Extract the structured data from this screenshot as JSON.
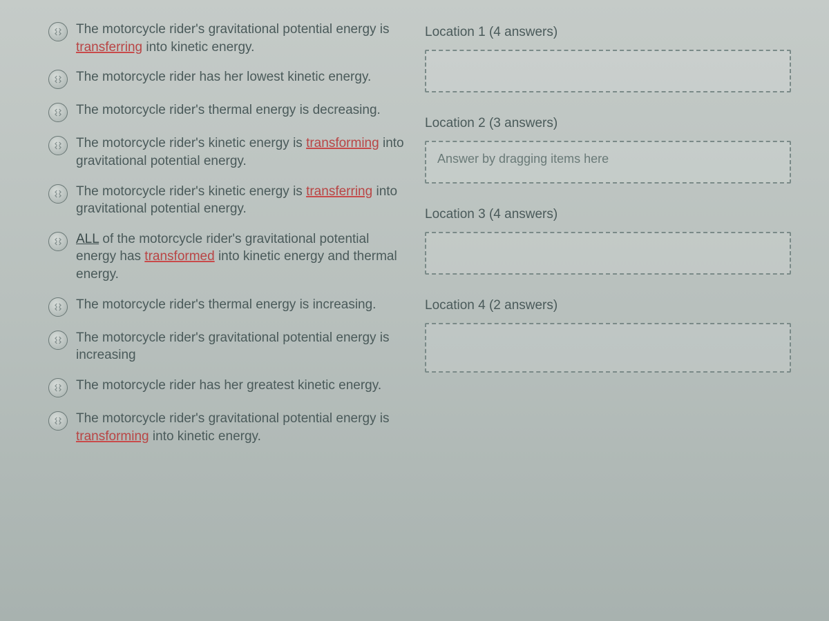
{
  "colors": {
    "background_top": "#c5cbc8",
    "background_bottom": "#a8b2af",
    "text": "#4a5a5a",
    "underline_red": "#c94a4a",
    "drop_border": "#7a8a88",
    "drop_placeholder": "#6a7a78"
  },
  "items": [
    {
      "pre": "The motorcycle rider's gravitational potential energy is ",
      "u": "transferring",
      "u_style": "red",
      "post": " into kinetic energy."
    },
    {
      "pre": "The motorcycle rider has her lowest kinetic energy.",
      "u": "",
      "u_style": "",
      "post": ""
    },
    {
      "pre": "The motorcycle rider's thermal energy is decreasing.",
      "u": "",
      "u_style": "",
      "post": ""
    },
    {
      "pre": "The motorcycle rider's kinetic energy is ",
      "u": "transforming",
      "u_style": "red",
      "post": " into gravitational potential energy."
    },
    {
      "pre": "The motorcycle rider's kinetic energy is ",
      "u": "transferring",
      "u_style": "red",
      "post": " into gravitational potential energy."
    },
    {
      "pre_u": "ALL",
      "pre_u_style": "dark",
      "pre2": " of the motorcycle rider's gravitational potential energy has ",
      "u": "transformed",
      "u_style": "red",
      "post": " into kinetic energy and thermal energy."
    },
    {
      "pre": "The motorcycle rider's thermal energy is increasing.",
      "u": "",
      "u_style": "",
      "post": ""
    },
    {
      "pre": "The motorcycle rider's gravitational potential energy is increasing",
      "u": "",
      "u_style": "",
      "post": ""
    },
    {
      "pre": "The motorcycle rider has her greatest kinetic energy.",
      "u": "",
      "u_style": "",
      "post": ""
    },
    {
      "pre": "The motorcycle rider's gravitational potential energy is ",
      "u": "transforming",
      "u_style": "red",
      "post": " into kinetic energy."
    }
  ],
  "locations": [
    {
      "label": "Location 1 (4 answers)",
      "placeholder": ""
    },
    {
      "label": "Location 2 (3 answers)",
      "placeholder": "Answer by dragging items here"
    },
    {
      "label": "Location 3 (4 answers)",
      "placeholder": ""
    },
    {
      "label": "Location 4 (2 answers)",
      "placeholder": ""
    }
  ]
}
